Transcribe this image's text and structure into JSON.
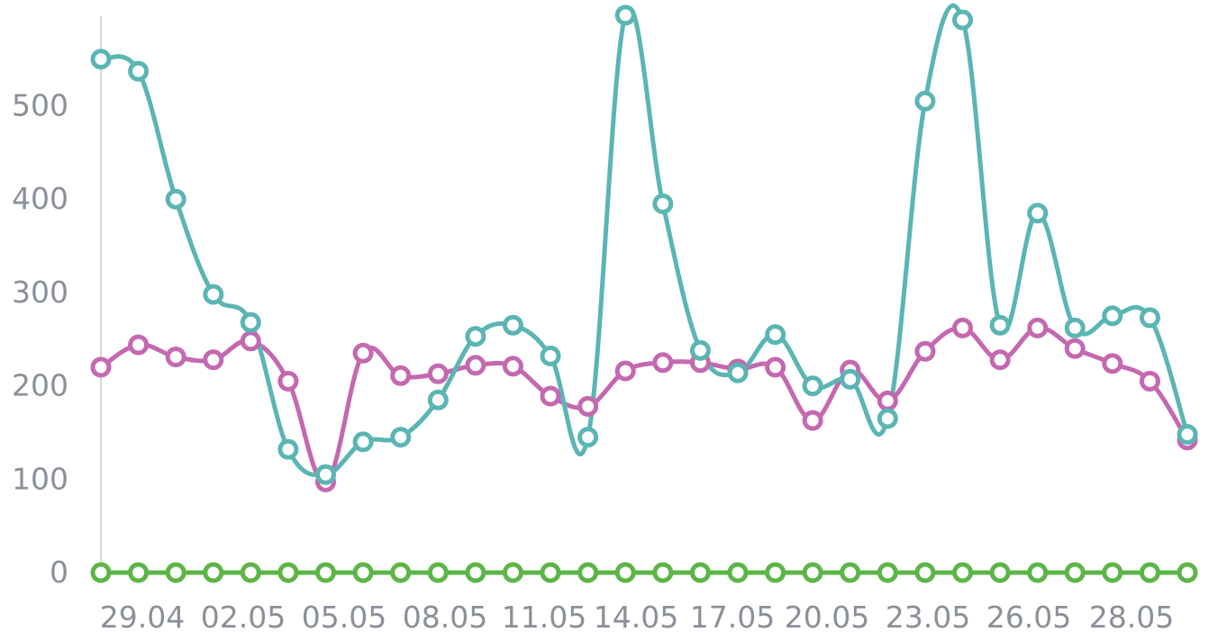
{
  "chart_data": {
    "type": "line",
    "x_tick_labels": [
      "29.04",
      "02.05",
      "05.05",
      "08.05",
      "11.05",
      "14.05",
      "17.05",
      "20.05",
      "23.05",
      "26.05",
      "28.05"
    ],
    "y_tick_labels": [
      "0",
      "100",
      "200",
      "300",
      "400",
      "500"
    ],
    "ylim": [
      0,
      600
    ],
    "y_ticks": [
      0,
      100,
      200,
      300,
      400,
      500
    ],
    "grid": false,
    "legend": "none",
    "colors": {
      "teal": "#5ab5b3",
      "magenta": "#c468b0",
      "green": "#5cb547",
      "axis": "#d6d6d6",
      "tick_text": "#8a9099"
    },
    "series": [
      {
        "color": "#5ab5b3",
        "values": [
          550,
          537,
          400,
          298,
          268,
          132,
          105,
          140,
          145,
          185,
          253,
          265,
          232,
          145,
          597,
          395,
          238,
          214,
          255,
          200,
          207,
          165,
          505,
          592,
          265,
          385,
          262,
          275,
          273,
          148
        ]
      },
      {
        "color": "#c468b0",
        "values": [
          220,
          244,
          231,
          228,
          248,
          205,
          97,
          235,
          211,
          213,
          222,
          221,
          189,
          178,
          216,
          225,
          225,
          218,
          220,
          163,
          217,
          184,
          237,
          262,
          228,
          262,
          240,
          224,
          205,
          142
        ]
      },
      {
        "color": "#5cb547",
        "values": [
          0,
          0,
          0,
          0,
          0,
          0,
          0,
          0,
          0,
          0,
          0,
          0,
          0,
          0,
          0,
          0,
          0,
          0,
          0,
          0,
          0,
          0,
          0,
          0,
          0,
          0,
          0,
          0,
          0,
          0
        ]
      }
    ]
  }
}
